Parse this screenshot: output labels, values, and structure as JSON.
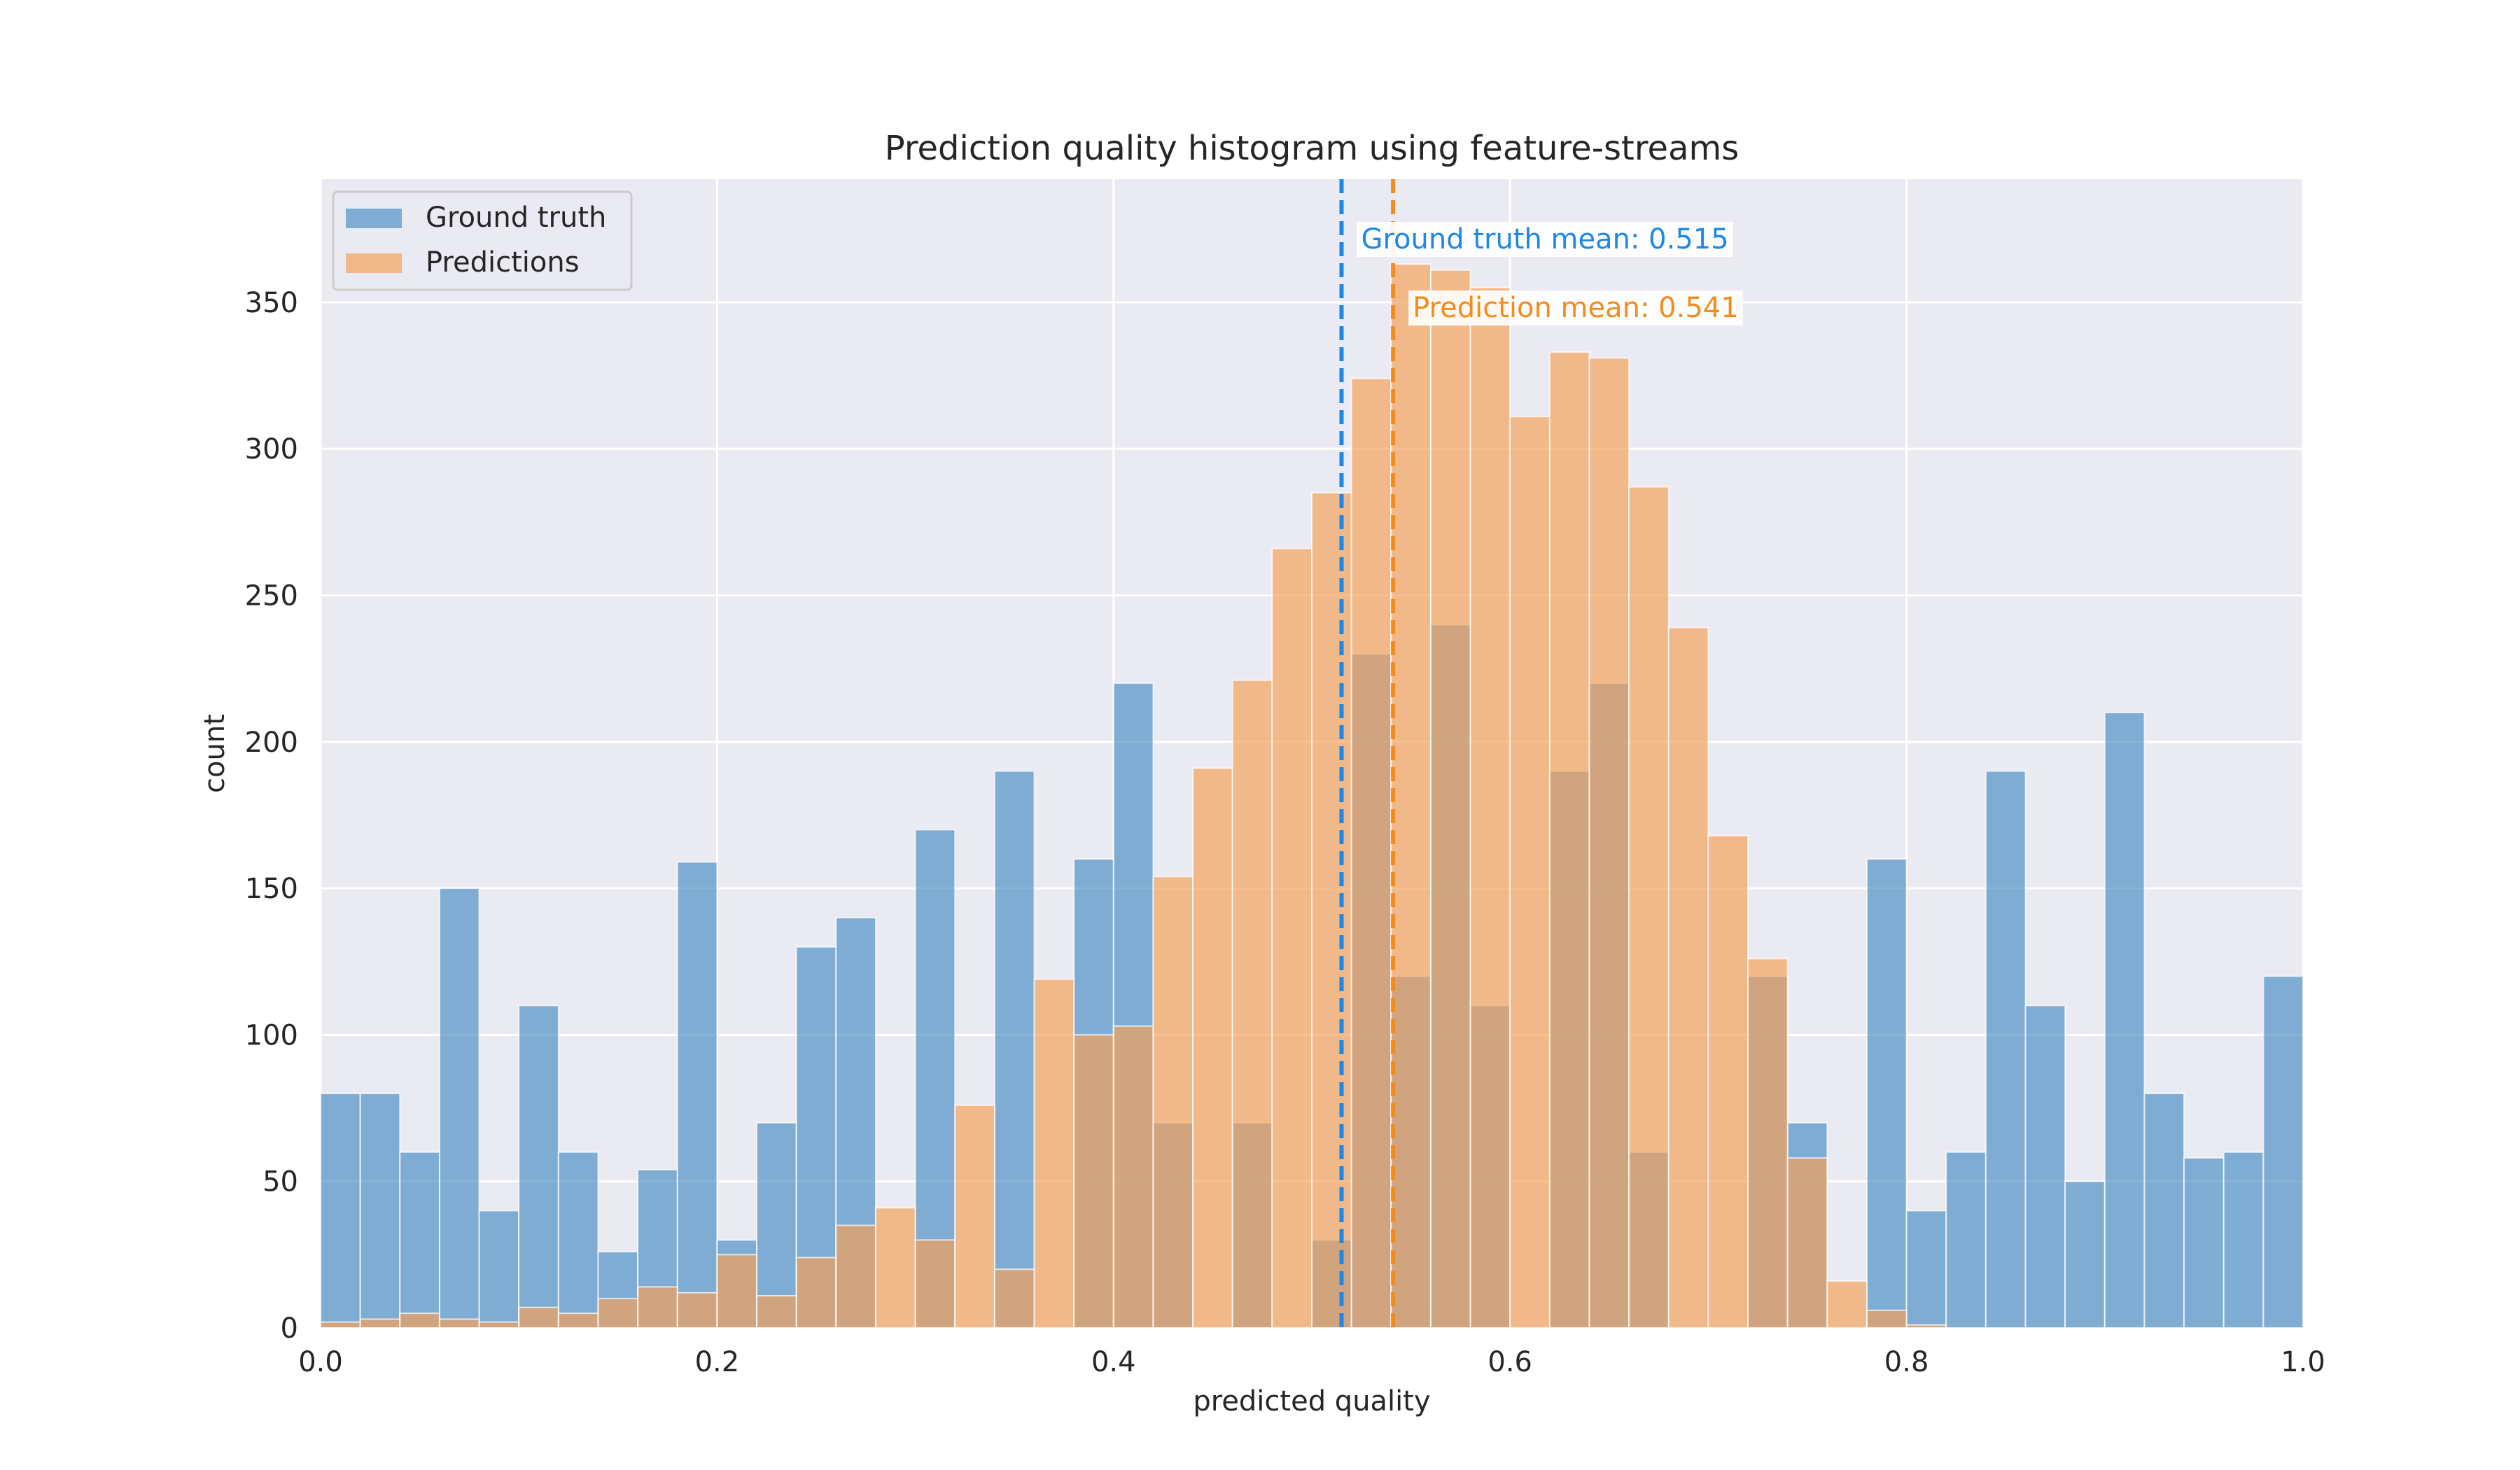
{
  "chart_data": {
    "type": "bar",
    "title": "Prediction quality histogram using feature-streams",
    "xlabel": "predicted quality",
    "ylabel": "count",
    "xlim": [
      0,
      1
    ],
    "ylim": [
      0,
      392
    ],
    "bin_width": 0.0204,
    "xticks": [
      0.0,
      0.2,
      0.4,
      0.6,
      0.8,
      1.0
    ],
    "xtick_labels": [
      "0.0",
      "0.2",
      "0.4",
      "0.6",
      "0.8",
      "1.0"
    ],
    "yticks": [
      0,
      50,
      100,
      150,
      200,
      250,
      300,
      350
    ],
    "ytick_labels": [
      "0",
      "50",
      "100",
      "150",
      "200",
      "250",
      "300",
      "350"
    ],
    "grid": true,
    "legend_position": "top-left",
    "series": [
      {
        "name": "Ground truth",
        "color": "#4c8fc4",
        "values": [
          80,
          80,
          60,
          150,
          40,
          110,
          60,
          26,
          54,
          159,
          30,
          70,
          130,
          140,
          0,
          170,
          0,
          190,
          0,
          160,
          220,
          70,
          0,
          70,
          0,
          30,
          230,
          120,
          240,
          110,
          0,
          190,
          220,
          60,
          0,
          0,
          120,
          70,
          0,
          160,
          40,
          60,
          190,
          110,
          50,
          210,
          80,
          58,
          60,
          120
        ]
      },
      {
        "name": "Predictions",
        "color": "#f5a057",
        "values": [
          2,
          3,
          5,
          3,
          2,
          7,
          5,
          10,
          14,
          12,
          25,
          11,
          24,
          35,
          41,
          30,
          76,
          20,
          119,
          100,
          103,
          154,
          191,
          221,
          266,
          285,
          324,
          363,
          361,
          355,
          311,
          333,
          331,
          287,
          239,
          168,
          126,
          58,
          16,
          6,
          1,
          0,
          0,
          0,
          0,
          0,
          0,
          0,
          0,
          0
        ]
      }
    ],
    "annotations": [
      {
        "label": "Ground truth mean: 0.515",
        "x": 0.515,
        "color": "#1e88e5"
      },
      {
        "label": "Prediction mean: 0.541",
        "x": 0.541,
        "color": "#f28c1c"
      }
    ]
  }
}
